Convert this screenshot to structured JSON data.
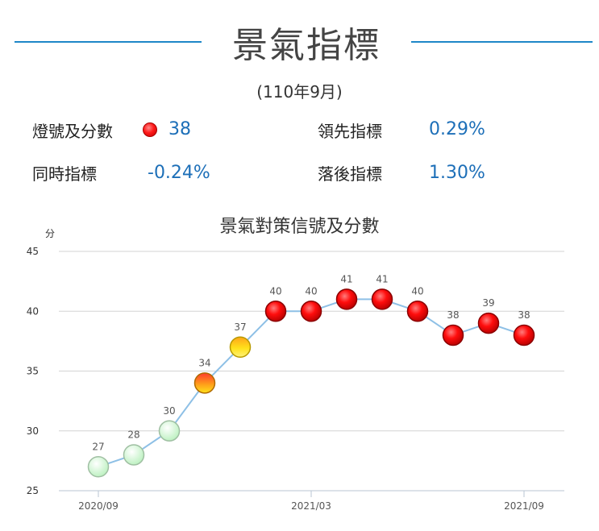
{
  "header": {
    "title": "景氣指標",
    "period": "(110年9月)"
  },
  "stats": {
    "signal_label": "燈號及分數",
    "signal_value": "38",
    "signal_color": "#ff1a1a",
    "leading_label": "領先指標",
    "leading_value": "0.29%",
    "coincident_label": "同時指標",
    "coincident_value": "-0.24%",
    "lagging_label": "落後指標",
    "lagging_value": "1.30%"
  },
  "chart_data": {
    "type": "line",
    "title": "景氣對策信號及分數",
    "ylabel": "分",
    "xlabel": "",
    "ylim": [
      25,
      45
    ],
    "yticks": [
      "25",
      "30",
      "35",
      "40",
      "45"
    ],
    "x": [
      "2020/09",
      "2020/10",
      "2020/11",
      "2020/12",
      "2021/01",
      "2021/02",
      "2021/03",
      "2021/04",
      "2021/05",
      "2021/06",
      "2021/07",
      "2021/08",
      "2021/09"
    ],
    "xtick_labels": [
      "2020/09",
      "2021/03",
      "2021/09"
    ],
    "values": [
      27,
      28,
      30,
      34,
      37,
      40,
      40,
      41,
      41,
      40,
      38,
      39,
      38
    ],
    "signals": [
      "green",
      "green",
      "green",
      "yellow-red",
      "yellow",
      "red",
      "red",
      "red",
      "red",
      "red",
      "red",
      "red",
      "red"
    ],
    "line_color": "#8ec0e6",
    "grid": true
  }
}
